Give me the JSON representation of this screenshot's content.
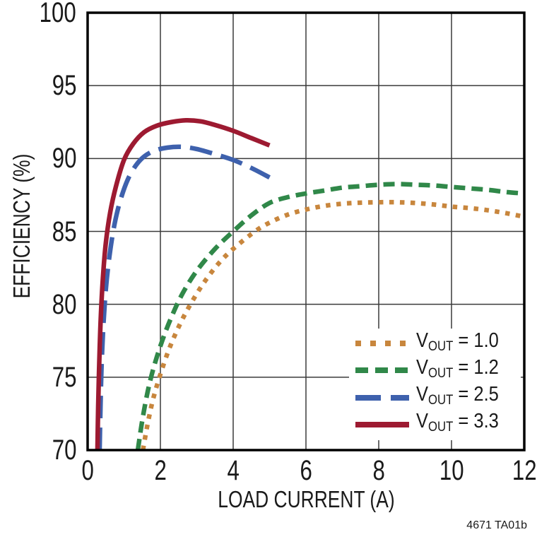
{
  "chart_data": {
    "type": "line",
    "title": "",
    "xlabel": "LOAD CURRENT (A)",
    "ylabel": "EFFICIENCY (%)",
    "xlim": [
      0,
      12
    ],
    "ylim": [
      70,
      100
    ],
    "xticks": [
      0,
      2,
      4,
      6,
      8,
      10,
      12
    ],
    "yticks": [
      70,
      75,
      80,
      85,
      90,
      95,
      100
    ],
    "grid": true,
    "legend_position": "lower-right",
    "series": [
      {
        "name": "VOUT = 1.0",
        "id": "vout-1-0",
        "color": "#C8863D",
        "line_style": "dot",
        "points": [
          [
            1.52,
            70
          ],
          [
            1.65,
            71.8
          ],
          [
            1.8,
            73.5
          ],
          [
            2.0,
            75.2
          ],
          [
            2.25,
            77.0
          ],
          [
            2.55,
            78.7
          ],
          [
            2.85,
            80.1
          ],
          [
            3.2,
            81.5
          ],
          [
            3.6,
            82.8
          ],
          [
            4.0,
            83.8
          ],
          [
            4.6,
            85.0
          ],
          [
            5.0,
            85.6
          ],
          [
            5.5,
            86.15
          ],
          [
            6.0,
            86.5
          ],
          [
            6.5,
            86.75
          ],
          [
            7.0,
            86.9
          ],
          [
            7.5,
            86.97
          ],
          [
            8.0,
            87.0
          ],
          [
            8.5,
            87.0
          ],
          [
            9.0,
            86.95
          ],
          [
            9.5,
            86.85
          ],
          [
            10.0,
            86.7
          ],
          [
            10.5,
            86.6
          ],
          [
            11.0,
            86.45
          ],
          [
            11.5,
            86.25
          ],
          [
            12.0,
            86.0
          ]
        ]
      },
      {
        "name": "VOUT = 1.2",
        "id": "vout-1-2",
        "color": "#308849",
        "line_style": "dash",
        "points": [
          [
            1.38,
            70
          ],
          [
            1.5,
            72.0
          ],
          [
            1.65,
            74.0
          ],
          [
            1.82,
            75.7
          ],
          [
            2.05,
            77.5
          ],
          [
            2.3,
            79.1
          ],
          [
            2.6,
            80.7
          ],
          [
            3.0,
            82.3
          ],
          [
            3.5,
            83.8
          ],
          [
            4.0,
            85.0
          ],
          [
            4.5,
            86.1
          ],
          [
            5.0,
            86.95
          ],
          [
            5.5,
            87.35
          ],
          [
            6.0,
            87.6
          ],
          [
            6.5,
            87.8
          ],
          [
            7.0,
            88.0
          ],
          [
            7.5,
            88.1
          ],
          [
            8.0,
            88.2
          ],
          [
            8.5,
            88.25
          ],
          [
            9.0,
            88.2
          ],
          [
            9.5,
            88.15
          ],
          [
            10.0,
            88.05
          ],
          [
            10.5,
            87.95
          ],
          [
            11.0,
            87.85
          ],
          [
            11.5,
            87.7
          ],
          [
            12.0,
            87.6
          ]
        ]
      },
      {
        "name": "VOUT = 2.5",
        "id": "vout-2-5",
        "color": "#3E61AD",
        "line_style": "long-dash",
        "points": [
          [
            0.33,
            70
          ],
          [
            0.35,
            72.5
          ],
          [
            0.38,
            75.5
          ],
          [
            0.43,
            78.4
          ],
          [
            0.5,
            81.0
          ],
          [
            0.6,
            83.3
          ],
          [
            0.74,
            85.5
          ],
          [
            0.92,
            87.3
          ],
          [
            1.15,
            88.8
          ],
          [
            1.45,
            89.9
          ],
          [
            1.8,
            90.5
          ],
          [
            2.2,
            90.75
          ],
          [
            2.6,
            90.8
          ],
          [
            3.0,
            90.65
          ],
          [
            3.5,
            90.3
          ],
          [
            4.0,
            89.9
          ],
          [
            4.5,
            89.35
          ],
          [
            5.0,
            88.7
          ]
        ]
      },
      {
        "name": "VOUT = 3.3",
        "id": "vout-3-3",
        "color": "#9D1A31",
        "line_style": "solid",
        "points": [
          [
            0.27,
            70
          ],
          [
            0.29,
            73.0
          ],
          [
            0.32,
            76.0
          ],
          [
            0.36,
            79.0
          ],
          [
            0.42,
            81.8
          ],
          [
            0.5,
            84.2
          ],
          [
            0.62,
            86.3
          ],
          [
            0.78,
            88.1
          ],
          [
            1.0,
            89.9
          ],
          [
            1.25,
            91.0
          ],
          [
            1.55,
            91.8
          ],
          [
            1.9,
            92.25
          ],
          [
            2.3,
            92.5
          ],
          [
            2.7,
            92.62
          ],
          [
            3.1,
            92.55
          ],
          [
            3.5,
            92.3
          ],
          [
            4.0,
            91.9
          ],
          [
            4.5,
            91.4
          ],
          [
            5.0,
            90.9
          ]
        ]
      }
    ]
  },
  "legend": {
    "items": [
      {
        "prefix": "V",
        "sub": "OUT",
        "suffix": " = 1.0"
      },
      {
        "prefix": "V",
        "sub": "OUT",
        "suffix": " = 1.2"
      },
      {
        "prefix": "V",
        "sub": "OUT",
        "suffix": " = 2.5"
      },
      {
        "prefix": "V",
        "sub": "OUT",
        "suffix": " = 3.3"
      }
    ]
  },
  "footnote": "4671 TA01b",
  "colors": {
    "frame": "#000000",
    "grid": "#3a3a3a",
    "text": "#1a1a1a",
    "background": "#ffffff"
  }
}
